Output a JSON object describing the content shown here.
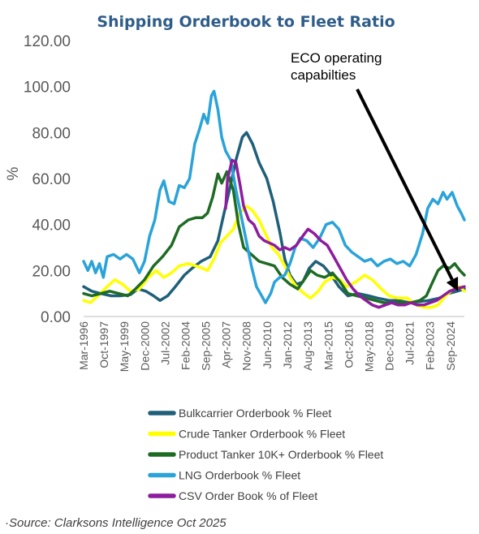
{
  "chart_data": {
    "type": "line",
    "title": "Shipping Orderbook to Fleet Ratio",
    "ylabel": "%",
    "xlabel": "",
    "ylim": [
      0,
      120
    ],
    "yticks": [
      "0.00",
      "20.00",
      "40.00",
      "60.00",
      "80.00",
      "100.00",
      "120.00"
    ],
    "xlim": [
      1996.17,
      2025.75
    ],
    "xticks": [
      {
        "label": "Mar-1996",
        "x": 1996.17
      },
      {
        "label": "Oct-1997",
        "x": 1997.75
      },
      {
        "label": "May-1999",
        "x": 1999.33
      },
      {
        "label": "Dec-2000",
        "x": 2000.92
      },
      {
        "label": "Jul-2002",
        "x": 2002.5
      },
      {
        "label": "Feb-2004",
        "x": 2004.08
      },
      {
        "label": "Sep-2005",
        "x": 2005.67
      },
      {
        "label": "Apr-2007",
        "x": 2007.25
      },
      {
        "label": "Nov-2008",
        "x": 2008.83
      },
      {
        "label": "Jun-2010",
        "x": 2010.42
      },
      {
        "label": "Jan-2012",
        "x": 2012.0
      },
      {
        "label": "Aug-2013",
        "x": 2013.58
      },
      {
        "label": "Mar-2015",
        "x": 2015.17
      },
      {
        "label": "Oct-2016",
        "x": 2016.75
      },
      {
        "label": "May-2018",
        "x": 2018.33
      },
      {
        "label": "Dec-2019",
        "x": 2019.92
      },
      {
        "label": "Jul-2021",
        "x": 2021.5
      },
      {
        "label": "Feb-2023",
        "x": 2023.08
      },
      {
        "label": "Sep-2024",
        "x": 2024.67
      }
    ],
    "legend_position": "bottom",
    "grid": false,
    "annotation": {
      "lines": [
        "ECO operating",
        "capabilties"
      ],
      "arrow_to": {
        "x": 2025.25,
        "y": 11
      }
    },
    "series": [
      {
        "name": "Bulkcarrier Orderbook % Fleet",
        "color": "#1f5f7a",
        "points": [
          [
            1996.17,
            13
          ],
          [
            1996.8,
            11
          ],
          [
            1997.5,
            10
          ],
          [
            1998.3,
            9
          ],
          [
            1999.0,
            9
          ],
          [
            1999.8,
            9.5
          ],
          [
            2000.4,
            12
          ],
          [
            2001.0,
            11
          ],
          [
            2001.6,
            9
          ],
          [
            2002.1,
            7
          ],
          [
            2002.7,
            9
          ],
          [
            2003.3,
            13
          ],
          [
            2004.0,
            18
          ],
          [
            2004.6,
            21
          ],
          [
            2005.3,
            24
          ],
          [
            2006.0,
            26
          ],
          [
            2006.6,
            33
          ],
          [
            2007.0,
            43
          ],
          [
            2007.5,
            55
          ],
          [
            2008.0,
            68
          ],
          [
            2008.5,
            78
          ],
          [
            2008.83,
            80
          ],
          [
            2009.3,
            75
          ],
          [
            2009.8,
            67
          ],
          [
            2010.4,
            60
          ],
          [
            2010.9,
            50
          ],
          [
            2011.4,
            37
          ],
          [
            2011.8,
            25
          ],
          [
            2012.2,
            18
          ],
          [
            2012.7,
            14
          ],
          [
            2013.2,
            15
          ],
          [
            2013.7,
            21
          ],
          [
            2014.2,
            24
          ],
          [
            2014.8,
            22
          ],
          [
            2015.4,
            18
          ],
          [
            2016.0,
            13
          ],
          [
            2016.7,
            9
          ],
          [
            2017.5,
            10
          ],
          [
            2018.3,
            9
          ],
          [
            2019.0,
            8
          ],
          [
            2019.9,
            7
          ],
          [
            2020.6,
            7
          ],
          [
            2021.5,
            6
          ],
          [
            2022.3,
            6.5
          ],
          [
            2023.0,
            7
          ],
          [
            2023.8,
            8
          ],
          [
            2024.5,
            10
          ],
          [
            2025.2,
            11
          ],
          [
            2025.75,
            12
          ]
        ]
      },
      {
        "name": "Crude Tanker Orderbook % Fleet",
        "color": "#ffff00",
        "points": [
          [
            1996.17,
            7
          ],
          [
            1996.7,
            6
          ],
          [
            1997.3,
            9
          ],
          [
            1998.0,
            13
          ],
          [
            1998.6,
            16
          ],
          [
            1999.2,
            14
          ],
          [
            1999.8,
            11
          ],
          [
            2000.5,
            12
          ],
          [
            2001.2,
            17
          ],
          [
            2001.8,
            20
          ],
          [
            2002.4,
            17
          ],
          [
            2003.0,
            19
          ],
          [
            2003.6,
            22
          ],
          [
            2004.3,
            23
          ],
          [
            2004.9,
            22
          ],
          [
            2005.4,
            21
          ],
          [
            2005.8,
            20
          ],
          [
            2006.3,
            25
          ],
          [
            2006.8,
            32
          ],
          [
            2007.3,
            35
          ],
          [
            2007.8,
            38
          ],
          [
            2008.3,
            45
          ],
          [
            2008.83,
            48
          ],
          [
            2009.3,
            46
          ],
          [
            2009.8,
            42
          ],
          [
            2010.3,
            36
          ],
          [
            2010.8,
            30
          ],
          [
            2011.3,
            27
          ],
          [
            2011.8,
            22
          ],
          [
            2012.2,
            17
          ],
          [
            2012.7,
            13
          ],
          [
            2013.3,
            10
          ],
          [
            2013.8,
            8
          ],
          [
            2014.4,
            11
          ],
          [
            2014.9,
            15
          ],
          [
            2015.5,
            17
          ],
          [
            2016.1,
            16
          ],
          [
            2016.6,
            13
          ],
          [
            2017.3,
            15
          ],
          [
            2018.0,
            18
          ],
          [
            2018.6,
            16
          ],
          [
            2019.3,
            12
          ],
          [
            2019.9,
            9
          ],
          [
            2020.6,
            8
          ],
          [
            2021.3,
            8
          ],
          [
            2022.0,
            5
          ],
          [
            2022.6,
            4
          ],
          [
            2023.2,
            4
          ],
          [
            2023.7,
            5
          ],
          [
            2024.3,
            9
          ],
          [
            2024.9,
            12
          ],
          [
            2025.4,
            13
          ],
          [
            2025.75,
            11
          ]
        ]
      },
      {
        "name": "Product Tanker 10K+ Orderbook % Fleet",
        "color": "#1e6b24",
        "points": [
          [
            1996.17,
            10
          ],
          [
            1996.8,
            9
          ],
          [
            1997.5,
            10
          ],
          [
            1998.2,
            11
          ],
          [
            1998.9,
            10
          ],
          [
            1999.6,
            9
          ],
          [
            2000.2,
            12
          ],
          [
            2000.9,
            16
          ],
          [
            2001.6,
            22
          ],
          [
            2002.3,
            26
          ],
          [
            2003.0,
            31
          ],
          [
            2003.6,
            39
          ],
          [
            2004.3,
            42
          ],
          [
            2004.9,
            43
          ],
          [
            2005.4,
            43
          ],
          [
            2005.8,
            45
          ],
          [
            2006.2,
            52
          ],
          [
            2006.6,
            62
          ],
          [
            2006.9,
            58
          ],
          [
            2007.3,
            63
          ],
          [
            2007.8,
            55
          ],
          [
            2008.2,
            40
          ],
          [
            2008.6,
            30
          ],
          [
            2009.2,
            27
          ],
          [
            2009.8,
            24
          ],
          [
            2010.4,
            23
          ],
          [
            2011.0,
            22
          ],
          [
            2011.6,
            17
          ],
          [
            2012.2,
            14
          ],
          [
            2012.8,
            12
          ],
          [
            2013.3,
            16
          ],
          [
            2013.8,
            20
          ],
          [
            2014.3,
            18
          ],
          [
            2014.9,
            17
          ],
          [
            2015.5,
            19
          ],
          [
            2016.1,
            15
          ],
          [
            2016.7,
            10
          ],
          [
            2017.4,
            9
          ],
          [
            2018.1,
            8
          ],
          [
            2018.8,
            7
          ],
          [
            2019.5,
            6
          ],
          [
            2020.2,
            6
          ],
          [
            2020.9,
            6
          ],
          [
            2021.6,
            6
          ],
          [
            2022.3,
            7
          ],
          [
            2022.8,
            9
          ],
          [
            2023.2,
            14
          ],
          [
            2023.7,
            20
          ],
          [
            2024.1,
            22
          ],
          [
            2024.6,
            21
          ],
          [
            2025.0,
            23
          ],
          [
            2025.4,
            20
          ],
          [
            2025.75,
            18
          ]
        ]
      },
      {
        "name": "LNG Orderbook % Fleet",
        "color": "#2aa3d9",
        "points": [
          [
            1996.17,
            24
          ],
          [
            1996.5,
            20
          ],
          [
            1996.8,
            24
          ],
          [
            1997.1,
            19
          ],
          [
            1997.4,
            23
          ],
          [
            1997.7,
            17
          ],
          [
            1998.0,
            26
          ],
          [
            1998.5,
            27
          ],
          [
            1999.0,
            25
          ],
          [
            1999.5,
            27
          ],
          [
            2000.0,
            25
          ],
          [
            2000.5,
            19
          ],
          [
            2000.9,
            24
          ],
          [
            2001.3,
            35
          ],
          [
            2001.7,
            42
          ],
          [
            2002.1,
            55
          ],
          [
            2002.4,
            59
          ],
          [
            2002.8,
            50
          ],
          [
            2003.2,
            49
          ],
          [
            2003.6,
            57
          ],
          [
            2004.0,
            56
          ],
          [
            2004.4,
            60
          ],
          [
            2004.8,
            75
          ],
          [
            2005.2,
            82
          ],
          [
            2005.5,
            88
          ],
          [
            2005.8,
            84
          ],
          [
            2006.1,
            96
          ],
          [
            2006.3,
            98
          ],
          [
            2006.6,
            90
          ],
          [
            2006.9,
            78
          ],
          [
            2007.2,
            72
          ],
          [
            2007.6,
            68
          ],
          [
            2008.0,
            55
          ],
          [
            2008.4,
            44
          ],
          [
            2008.8,
            33
          ],
          [
            2009.2,
            22
          ],
          [
            2009.6,
            13
          ],
          [
            2010.0,
            9
          ],
          [
            2010.3,
            6
          ],
          [
            2010.7,
            10
          ],
          [
            2011.0,
            15
          ],
          [
            2011.4,
            17
          ],
          [
            2011.8,
            18
          ],
          [
            2012.2,
            23
          ],
          [
            2012.6,
            30
          ],
          [
            2013.0,
            34
          ],
          [
            2013.5,
            33
          ],
          [
            2014.0,
            30
          ],
          [
            2014.5,
            34
          ],
          [
            2015.0,
            40
          ],
          [
            2015.5,
            41
          ],
          [
            2016.0,
            38
          ],
          [
            2016.5,
            31
          ],
          [
            2017.0,
            28
          ],
          [
            2017.5,
            26
          ],
          [
            2018.0,
            24
          ],
          [
            2018.5,
            25
          ],
          [
            2019.0,
            22
          ],
          [
            2019.5,
            24
          ],
          [
            2020.0,
            25
          ],
          [
            2020.5,
            23
          ],
          [
            2021.0,
            24
          ],
          [
            2021.5,
            22
          ],
          [
            2022.0,
            27
          ],
          [
            2022.5,
            36
          ],
          [
            2022.9,
            47
          ],
          [
            2023.3,
            51
          ],
          [
            2023.7,
            49
          ],
          [
            2024.1,
            54
          ],
          [
            2024.4,
            51
          ],
          [
            2024.8,
            54
          ],
          [
            2025.2,
            48
          ],
          [
            2025.5,
            45
          ],
          [
            2025.75,
            42
          ]
        ]
      },
      {
        "name": "CSV Order Book % of Fleet",
        "color": "#8e1c9e",
        "points": [
          [
            2007.2,
            47
          ],
          [
            2007.35,
            60
          ],
          [
            2007.5,
            63
          ],
          [
            2007.7,
            68
          ],
          [
            2008.0,
            67
          ],
          [
            2008.3,
            58
          ],
          [
            2008.6,
            48
          ],
          [
            2009.0,
            42
          ],
          [
            2009.4,
            40
          ],
          [
            2009.8,
            35
          ],
          [
            2010.2,
            33
          ],
          [
            2010.6,
            32
          ],
          [
            2011.0,
            31
          ],
          [
            2011.4,
            29
          ],
          [
            2011.8,
            30
          ],
          [
            2012.2,
            29
          ],
          [
            2012.7,
            31
          ],
          [
            2013.2,
            35
          ],
          [
            2013.6,
            38
          ],
          [
            2014.1,
            36
          ],
          [
            2014.6,
            33
          ],
          [
            2015.1,
            31
          ],
          [
            2015.6,
            26
          ],
          [
            2016.1,
            21
          ],
          [
            2016.6,
            16
          ],
          [
            2017.1,
            12
          ],
          [
            2017.6,
            9
          ],
          [
            2018.1,
            7
          ],
          [
            2018.6,
            5
          ],
          [
            2019.1,
            4
          ],
          [
            2019.6,
            5
          ],
          [
            2020.1,
            6
          ],
          [
            2020.6,
            5
          ],
          [
            2021.1,
            5
          ],
          [
            2021.6,
            6
          ],
          [
            2022.1,
            5
          ],
          [
            2022.6,
            5
          ],
          [
            2023.1,
            6
          ],
          [
            2023.6,
            7
          ],
          [
            2024.1,
            9
          ],
          [
            2024.6,
            11
          ],
          [
            2025.1,
            12
          ],
          [
            2025.75,
            13
          ]
        ]
      }
    ]
  },
  "source": "Source: Clarksons Intelligence Oct 2025"
}
